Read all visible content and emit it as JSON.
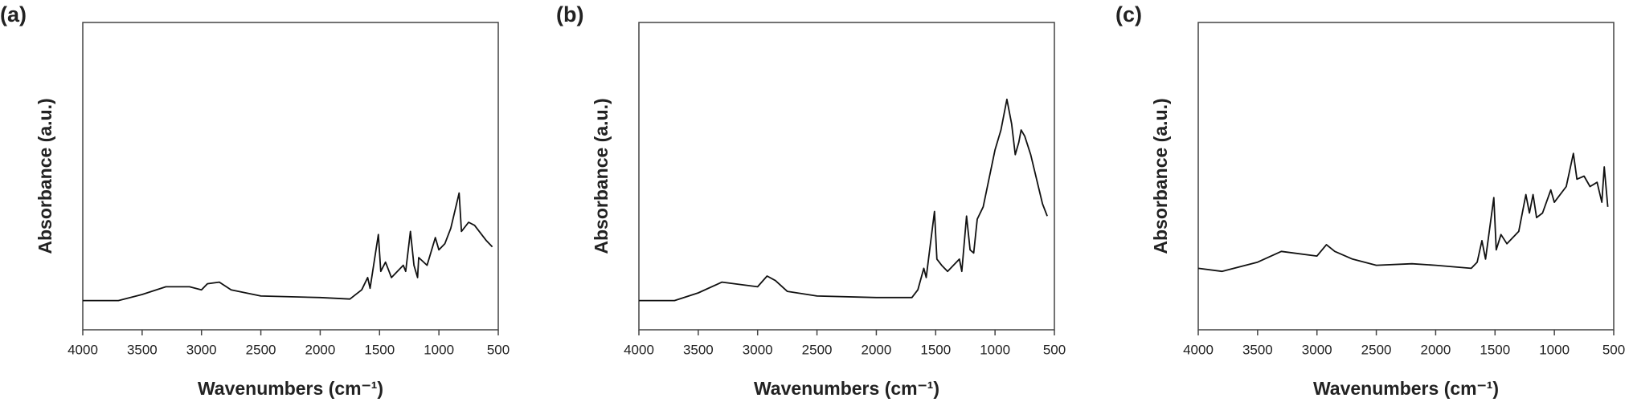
{
  "chart_data": [
    {
      "type": "line",
      "title": "(a)",
      "xlabel": "Wavenumbers (cm⁻¹)",
      "ylabel": "Absorbance (a.u.)",
      "color": "#111111",
      "xlim": [
        4000,
        500
      ],
      "xticks": [
        4000,
        3500,
        3000,
        2500,
        2000,
        1500,
        1000,
        500
      ],
      "ylim": [
        0,
        100
      ],
      "x": [
        4000,
        3700,
        3500,
        3300,
        3100,
        3000,
        2950,
        2850,
        2750,
        2500,
        2000,
        1750,
        1650,
        1600,
        1580,
        1510,
        1490,
        1450,
        1400,
        1300,
        1280,
        1240,
        1210,
        1180,
        1170,
        1100,
        1030,
        1000,
        950,
        900,
        830,
        810,
        750,
        700,
        600,
        550
      ],
      "values": [
        9.5,
        9.5,
        11.5,
        14,
        14,
        13,
        15,
        15.5,
        13,
        11,
        10.5,
        10,
        13,
        17,
        13.5,
        31,
        19,
        22,
        17,
        21,
        19,
        32,
        21,
        17,
        23.5,
        21,
        30,
        26,
        28,
        33,
        44.5,
        32,
        35,
        34,
        29,
        27
      ]
    },
    {
      "type": "line",
      "title": "(b)",
      "xlabel": "Wavenumbers (cm⁻¹)",
      "ylabel": "Absorbance (a.u.)",
      "color": "#111111",
      "xlim": [
        4000,
        500
      ],
      "xticks": [
        4000,
        3500,
        3000,
        2500,
        2000,
        1500,
        1000,
        500
      ],
      "ylim": [
        0,
        100
      ],
      "x": [
        4000,
        3700,
        3500,
        3300,
        3000,
        2920,
        2850,
        2750,
        2500,
        2000,
        1700,
        1650,
        1600,
        1580,
        1510,
        1490,
        1450,
        1400,
        1300,
        1280,
        1240,
        1210,
        1180,
        1150,
        1100,
        1000,
        950,
        900,
        860,
        830,
        800,
        780,
        750,
        700,
        600,
        560
      ],
      "values": [
        9.5,
        9.5,
        12,
        15.5,
        14,
        17.5,
        16,
        12.5,
        11,
        10.5,
        10.5,
        13,
        20,
        17,
        38.5,
        23,
        21,
        19,
        23,
        19,
        37,
        26,
        25,
        36,
        40,
        58.5,
        65,
        75,
        67,
        57,
        61,
        65,
        63,
        57,
        41,
        37
      ]
    },
    {
      "type": "line",
      "title": "(c)",
      "xlabel": "Wavenumbers (cm⁻¹)",
      "ylabel": "Absorbance (a.u.)",
      "color": "#111111",
      "xlim": [
        4000,
        500
      ],
      "xticks": [
        4000,
        3500,
        3000,
        2500,
        2000,
        1500,
        1000,
        500
      ],
      "ylim": [
        0,
        100
      ],
      "x": [
        4000,
        3800,
        3500,
        3300,
        3000,
        2920,
        2850,
        2700,
        2500,
        2200,
        2000,
        1700,
        1650,
        1610,
        1580,
        1510,
        1490,
        1450,
        1400,
        1300,
        1240,
        1210,
        1180,
        1150,
        1100,
        1030,
        1000,
        900,
        840,
        810,
        750,
        700,
        640,
        600,
        580,
        550
      ],
      "values": [
        20,
        19,
        22,
        25.5,
        24,
        27.7,
        25.5,
        23,
        21,
        21.5,
        21,
        20,
        22,
        29,
        23,
        43,
        26,
        31,
        28,
        32,
        44,
        38,
        44,
        36.5,
        38,
        45.5,
        41.5,
        46.6,
        57.4,
        49,
        50,
        46.6,
        48,
        41.5,
        53,
        40
      ]
    }
  ]
}
